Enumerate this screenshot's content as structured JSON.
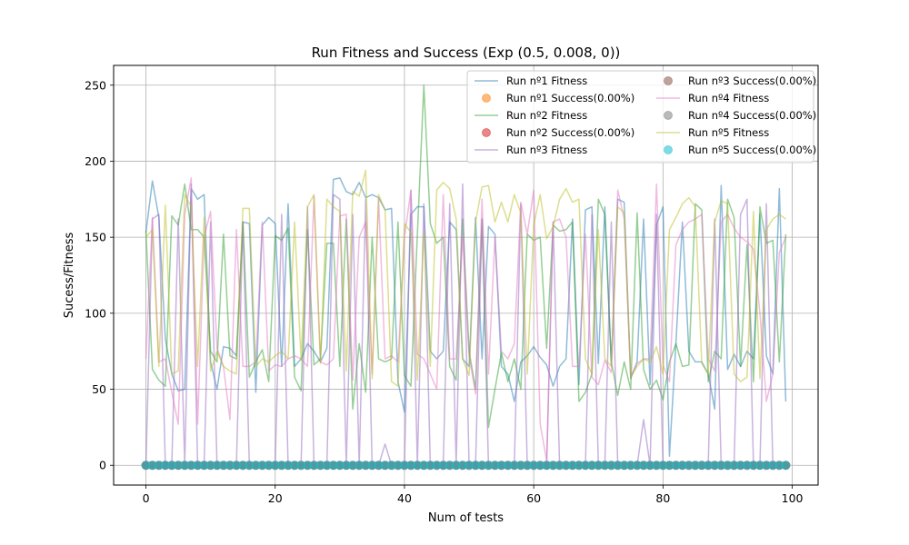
{
  "chart_data": {
    "type": "line",
    "title": "Run Fitness and Success (Exp (0.5, 0.008, 0))",
    "xlabel": "Num of tests",
    "ylabel": "Sucess/Fitness",
    "xlim": [
      -5,
      104
    ],
    "ylim": [
      -13,
      263
    ],
    "xticks": [
      0,
      20,
      40,
      60,
      80,
      100
    ],
    "yticks": [
      0,
      50,
      100,
      150,
      200,
      250
    ],
    "grid": true,
    "legend_position": "top-right",
    "legend_columns": 2,
    "series": [
      {
        "name": "Run nº1 Fitness",
        "kind": "line",
        "color": "#1f77b4",
        "values": [
          153,
          187,
          163,
          83,
          60,
          49,
          50,
          182,
          175,
          178,
          68,
          50,
          78,
          77,
          72,
          160,
          159,
          48,
          158,
          163,
          159,
          65,
          172,
          65,
          70,
          80,
          75,
          68,
          77,
          188,
          189,
          180,
          178,
          186,
          176,
          178,
          176,
          168,
          169,
          55,
          35,
          165,
          170,
          170,
          75,
          70,
          75,
          160,
          155,
          70,
          65,
          163,
          70,
          157,
          152,
          65,
          60,
          42,
          68,
          72,
          78,
          71,
          66,
          52,
          65,
          70,
          162,
          53,
          168,
          170,
          67,
          170,
          66,
          175,
          173,
          57,
          68,
          162,
          53,
          158,
          170,
          6,
          80,
          160,
          75,
          68,
          68,
          60,
          37,
          184,
          63,
          73,
          65,
          75,
          70,
          165,
          72,
          60,
          182,
          42
        ]
      },
      {
        "name": "Run nº1 Success(0.00%)",
        "kind": "markers",
        "color": "#ff7f0e",
        "constant": 0
      },
      {
        "name": "Run nº2 Fitness",
        "kind": "line",
        "color": "#2ca02c",
        "values": [
          154,
          63,
          56,
          52,
          164,
          158,
          185,
          155,
          155,
          150,
          75,
          68,
          152,
          72,
          70,
          160,
          58,
          68,
          76,
          55,
          151,
          148,
          156,
          58,
          49,
          155,
          66,
          70,
          146,
          146,
          65,
          162,
          37,
          80,
          48,
          150,
          70,
          68,
          70,
          160,
          59,
          52,
          152,
          250,
          159,
          146,
          150,
          65,
          56,
          162,
          75,
          50,
          162,
          25,
          50,
          74,
          55,
          70,
          50,
          152,
          148,
          150,
          77,
          158,
          154,
          155,
          160,
          42,
          48,
          60,
          175,
          165,
          68,
          46,
          68,
          50,
          166,
          63,
          50,
          56,
          43,
          68,
          80,
          65,
          66,
          172,
          168,
          55,
          75,
          70,
          175,
          163,
          65,
          145,
          55,
          170,
          146,
          148,
          68,
          152
        ]
      },
      {
        "name": "Run nº2 Success(0.00%)",
        "kind": "markers",
        "color": "#d62728",
        "constant": 0
      },
      {
        "name": "Run nº3 Fitness",
        "kind": "line",
        "color": "#9467bd",
        "values": [
          0,
          162,
          165,
          0,
          0,
          162,
          0,
          185,
          0,
          0,
          160,
          0,
          0,
          0,
          0,
          160,
          0,
          0,
          0,
          0,
          0,
          165,
          0,
          0,
          0,
          170,
          0,
          0,
          0,
          178,
          175,
          0,
          165,
          0,
          175,
          0,
          0,
          14,
          0,
          0,
          0,
          181,
          0,
          172,
          0,
          0,
          0,
          172,
          0,
          185,
          0,
          0,
          162,
          0,
          0,
          0,
          0,
          0,
          172,
          0,
          0,
          0,
          0,
          160,
          0,
          0,
          0,
          0,
          0,
          165,
          0,
          0,
          160,
          0,
          0,
          0,
          0,
          30,
          0,
          165,
          0,
          0,
          0,
          0,
          0,
          0,
          0,
          0,
          162,
          0,
          0,
          0,
          165,
          175,
          0,
          0,
          172,
          0,
          0,
          0
        ]
      },
      {
        "name": "Run nº3 Success(0.00%)",
        "kind": "markers",
        "color": "#8c564b",
        "constant": 0
      },
      {
        "name": "Run nº4 Fitness",
        "kind": "line",
        "color": "#e377c2",
        "values": [
          70,
          163,
          68,
          70,
          48,
          27,
          165,
          189,
          27,
          150,
          167,
          77,
          65,
          30,
          155,
          65,
          65,
          68,
          160,
          62,
          66,
          65,
          70,
          72,
          70,
          65,
          177,
          68,
          66,
          70,
          164,
          165,
          56,
          150,
          160,
          60,
          175,
          70,
          72,
          68,
          150,
          181,
          73,
          70,
          60,
          50,
          178,
          70,
          70,
          150,
          72,
          47,
          175,
          60,
          150,
          75,
          70,
          80,
          173,
          152,
          181,
          27,
          3,
          160,
          162,
          150,
          65,
          65,
          152,
          58,
          53,
          69,
          61,
          181,
          162,
          58,
          67,
          70,
          70,
          185,
          66,
          55,
          145,
          155,
          160,
          162,
          165,
          70,
          62,
          160,
          165,
          156,
          150,
          147,
          142,
          100,
          42,
          60,
          140,
          150
        ]
      },
      {
        "name": "Run nº4 Success(0.00%)",
        "kind": "markers",
        "color": "#7f7f7f",
        "constant": 0
      },
      {
        "name": "Run nº5 Fitness",
        "kind": "line",
        "color": "#bcbd22",
        "values": [
          150,
          155,
          65,
          171,
          60,
          62,
          178,
          170,
          65,
          163,
          62,
          75,
          65,
          62,
          60,
          169,
          169,
          65,
          70,
          68,
          72,
          75,
          70,
          160,
          69,
          170,
          178,
          67,
          175,
          170,
          167,
          62,
          180,
          177,
          194,
          57,
          178,
          168,
          55,
          52,
          159,
          153,
          56,
          153,
          65,
          181,
          186,
          182,
          162,
          70,
          59,
          160,
          183,
          184,
          160,
          173,
          160,
          178,
          166,
          60,
          158,
          178,
          149,
          157,
          175,
          182,
          173,
          175,
          70,
          60,
          155,
          70,
          65,
          170,
          166,
          58,
          65,
          70,
          68,
          78,
          60,
          155,
          163,
          172,
          176,
          170,
          67,
          60,
          160,
          174,
          172,
          60,
          55,
          58,
          167,
          57,
          155,
          162,
          165,
          162
        ]
      },
      {
        "name": "Run nº5 Success(0.00%)",
        "kind": "markers",
        "color": "#17becf",
        "constant": 0
      }
    ]
  }
}
